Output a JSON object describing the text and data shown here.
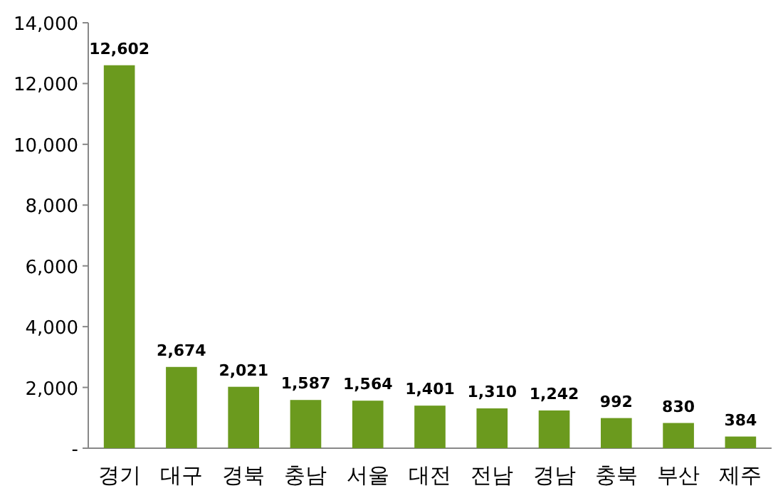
{
  "chart_data": {
    "type": "bar",
    "categories": [
      "경기",
      "대구",
      "경북",
      "충남",
      "서울",
      "대전",
      "전남",
      "경남",
      "충북",
      "부산",
      "제주"
    ],
    "values": [
      12602,
      2674,
      2021,
      1587,
      1564,
      1401,
      1310,
      1242,
      992,
      830,
      384
    ],
    "value_labels": [
      "12,602",
      "2,674",
      "2,021",
      "1,587",
      "1,564",
      "1,401",
      "1,310",
      "1,242",
      "992",
      "830",
      "384"
    ],
    "color": "#6b9a1e",
    "ylim": [
      0,
      14000
    ],
    "yticks": [
      {
        "value": 0,
        "label": "-"
      },
      {
        "value": 2000,
        "label": "2,000"
      },
      {
        "value": 4000,
        "label": "4,000"
      },
      {
        "value": 6000,
        "label": "6,000"
      },
      {
        "value": 8000,
        "label": "8,000"
      },
      {
        "value": 10000,
        "label": "10,000"
      },
      {
        "value": 12000,
        "label": "12,000"
      },
      {
        "value": 14000,
        "label": "14,000"
      }
    ],
    "grid": false
  }
}
